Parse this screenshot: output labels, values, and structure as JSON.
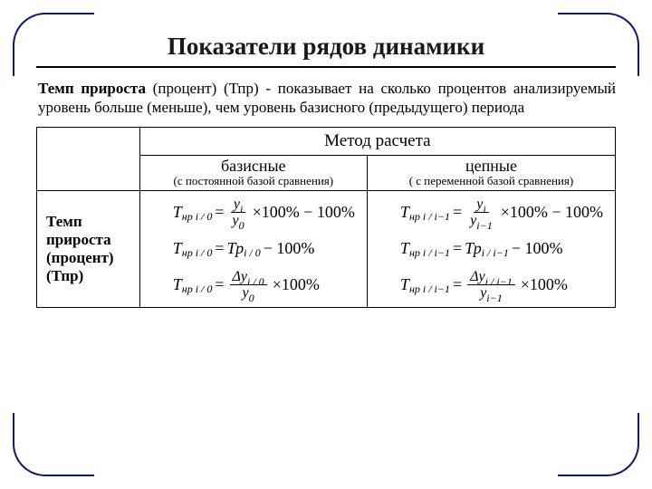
{
  "title": "Показатели рядов динамики",
  "description": {
    "bold": "Темп прироста",
    "rest": " (процент) (Тпр) - показывает на сколько процентов анализируемый уровень больше (меньше), чем уровень базисного (предыдущего) периода"
  },
  "table": {
    "method_header": "Метод расчета",
    "columns": [
      {
        "title": "базисные",
        "sub": "(с постоянной базой сравнения)"
      },
      {
        "title": "цепные",
        "sub": "( с переменной базой сравнения)"
      }
    ],
    "row_label_line1": "Темп прироста",
    "row_label_line2": "(процент)",
    "row_label_line3": "(Тпр)",
    "formulas": {
      "basic": [
        {
          "lhs_sub": "нр i / 0",
          "frac_num": "y",
          "frac_num_sub": "i",
          "frac_den": "y",
          "frac_den_sub": "0",
          "tail": "×100% − 100%"
        },
        {
          "lhs_sub": "нр i / 0",
          "rhs": "= Тр",
          "rhs_sub": "i / 0",
          "tail2": " − 100%"
        },
        {
          "lhs_sub": "нр i / 0",
          "frac_num": "Δy",
          "frac_num_sub": "i / 0",
          "frac_den": "y",
          "frac_den_sub": "0",
          "tail": "×100%"
        }
      ],
      "chain": [
        {
          "lhs_sub": "нр i / i−1",
          "frac_num": "y",
          "frac_num_sub": "i",
          "frac_den": "y",
          "frac_den_sub": "i−1",
          "tail": "×100% − 100%"
        },
        {
          "lhs_sub": "нр i / i−1",
          "rhs": "= Тр",
          "rhs_sub": "i / i−1",
          "tail2": " − 100%"
        },
        {
          "lhs_sub": "нр i / i−1",
          "frac_num": "Δy",
          "frac_num_sub": "i / i−1",
          "frac_den": "y",
          "frac_den_sub": "i−1",
          "tail": "×100%"
        }
      ]
    }
  },
  "style": {
    "border_color": "#000000",
    "corner_color": "#0c1a66",
    "title_fontsize": 27,
    "desc_fontsize": 17,
    "formula_fontsize": 18
  }
}
